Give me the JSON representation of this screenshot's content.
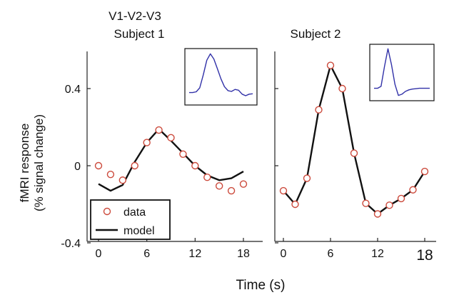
{
  "chart_data": [
    {
      "type": "line",
      "title": "V1-V2-V3",
      "subtitle": "Subject 1",
      "ylabel": "fMRI response",
      "ylabel2": "(% signal change)",
      "xlabel": "Time (s)",
      "xlim": [
        -1.5,
        19.5
      ],
      "ylim": [
        -0.43,
        0.6
      ],
      "x_ticks": [
        0,
        6,
        12,
        18
      ],
      "y_ticks": [
        -0.4,
        0,
        0.4
      ],
      "legend": {
        "position": "bottom-left",
        "entries": [
          "data",
          "model"
        ]
      },
      "series": [
        {
          "name": "data",
          "mark": "circle",
          "x": [
            0,
            1.5,
            3,
            4.5,
            6,
            7.5,
            9,
            10.5,
            12,
            13.5,
            15,
            16.5,
            18
          ],
          "y": [
            0.0,
            -0.045,
            -0.075,
            0.0,
            0.12,
            0.185,
            0.145,
            0.06,
            0.0,
            -0.06,
            -0.105,
            -0.13,
            -0.095
          ]
        },
        {
          "name": "model",
          "mark": "line",
          "x": [
            0,
            1.5,
            3,
            4.5,
            6,
            7.5,
            9,
            10.5,
            12,
            13.5,
            15,
            16.5,
            18
          ],
          "y": [
            -0.095,
            -0.13,
            -0.1,
            0.02,
            0.12,
            0.19,
            0.13,
            0.065,
            0.0,
            -0.05,
            -0.075,
            -0.065,
            -0.03
          ]
        }
      ],
      "inset": {
        "type": "line",
        "values": [
          0.0,
          0.0,
          0.02,
          0.12,
          0.45,
          0.82,
          0.98,
          0.85,
          0.6,
          0.35,
          0.15,
          0.05,
          0.03,
          0.08,
          0.06,
          -0.04,
          -0.08,
          -0.04,
          -0.03
        ]
      }
    },
    {
      "type": "line",
      "title": "Subject 2",
      "xlim": [
        -1.5,
        19.5
      ],
      "ylim": [
        -0.43,
        0.6
      ],
      "x_ticks": [
        0,
        6,
        12,
        18
      ],
      "series": [
        {
          "name": "data",
          "mark": "circle",
          "x": [
            0,
            1.5,
            3,
            4.5,
            6,
            7.5,
            9,
            10.5,
            12,
            13.5,
            15,
            16.5,
            18
          ],
          "y": [
            -0.13,
            -0.2,
            -0.065,
            0.29,
            0.52,
            0.4,
            0.065,
            -0.195,
            -0.25,
            -0.205,
            -0.17,
            -0.125,
            -0.03
          ]
        },
        {
          "name": "model",
          "mark": "line",
          "x": [
            0,
            1.5,
            3,
            4.5,
            6,
            7.5,
            9,
            10.5,
            12,
            13.5,
            15,
            16.5,
            18
          ],
          "y": [
            -0.13,
            -0.2,
            -0.065,
            0.29,
            0.52,
            0.4,
            0.065,
            -0.195,
            -0.25,
            -0.205,
            -0.17,
            -0.125,
            -0.03
          ]
        }
      ],
      "inset": {
        "type": "line",
        "values": [
          0.0,
          0.0,
          0.05,
          0.55,
          1.0,
          0.6,
          0.1,
          -0.18,
          -0.15,
          -0.08,
          -0.04,
          -0.02,
          -0.01,
          0.0,
          0.0,
          0.0,
          0.0
        ]
      }
    }
  ],
  "colors": {
    "data_marker": "#cc4a3c",
    "model_line": "#111111",
    "inset_line": "#3131a8",
    "axes": "#222222"
  }
}
